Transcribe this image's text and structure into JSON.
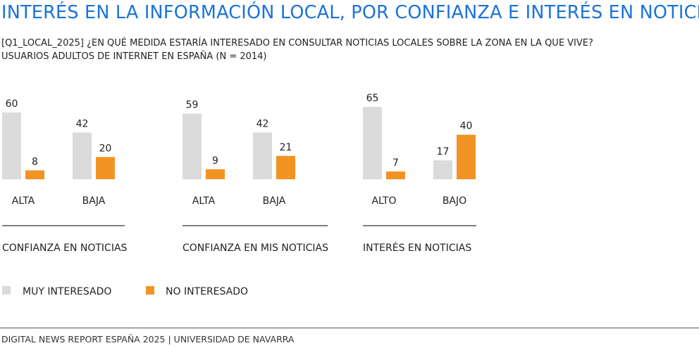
{
  "header": {
    "title": "INTERÉS EN LA INFORMACIÓN LOCAL, POR CONFIANZA E INTERÉS EN NOTICIAS",
    "question": "[Q1_LOCAL_2025] ¿EN QUÉ MEDIDA ESTARÍA INTERESADO EN CONSULTAR NOTICIAS LOCALES SOBRE LA ZONA EN LA QUE VIVE?",
    "base": "USUARIOS ADULTOS DE INTERNET EN ESPAÑA (N = 2014)"
  },
  "colors": {
    "muy_interesado": "#dcdcdc",
    "no_interesado": "#f29424",
    "title": "#1a73d8"
  },
  "chart_data": {
    "type": "bar",
    "legend_position": "bottom-left",
    "grid": false,
    "ylim": [
      0,
      100
    ],
    "series": [
      {
        "name": "MUY INTERESADO",
        "color": "#dcdcdc"
      },
      {
        "name": "NO INTERESADO",
        "color": "#f29424"
      }
    ],
    "groups": [
      {
        "label": "CONFIANZA EN NOTICIAS",
        "categories": [
          {
            "label": "ALTA",
            "values": [
              60,
              8
            ]
          },
          {
            "label": "BAJA",
            "values": [
              42,
              20
            ]
          }
        ]
      },
      {
        "label": "CONFIANZA EN MIS NOTICIAS",
        "categories": [
          {
            "label": "ALTA",
            "values": [
              59,
              9
            ]
          },
          {
            "label": "BAJA",
            "values": [
              42,
              21
            ]
          }
        ]
      },
      {
        "label": "INTERÉS EN NOTICIAS",
        "categories": [
          {
            "label": "ALTO",
            "values": [
              65,
              7
            ]
          },
          {
            "label": "BAJO",
            "values": [
              17,
              40
            ]
          }
        ]
      }
    ]
  },
  "footer": {
    "source": "DIGITAL NEWS REPORT ESPAÑA 2025 | UNIVERSIDAD DE NAVARRA"
  }
}
